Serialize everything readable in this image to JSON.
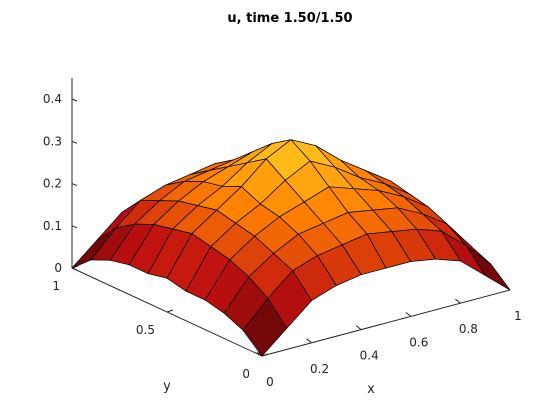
{
  "chart_data": {
    "type": "surface",
    "title": "u, time 1.50/1.50",
    "xlabel": "x",
    "ylabel": "y",
    "zlabel": "",
    "xlim": [
      0,
      1
    ],
    "ylim": [
      0,
      1
    ],
    "zlim": [
      0,
      0.45
    ],
    "x_ticks": [
      "0",
      "0.2",
      "0.4",
      "0.6",
      "0.8",
      "1"
    ],
    "y_ticks": [
      "0",
      "0.5",
      "1"
    ],
    "z_ticks": [
      "0",
      "0.1",
      "0.2",
      "0.3",
      "0.4"
    ],
    "colormap": "autumn",
    "colormap_colors": [
      "#3a0000",
      "#c01010",
      "#ff8000",
      "#ffd020"
    ],
    "edge_color": "#000000",
    "grid": false,
    "mesh_size": 10,
    "x": [
      0,
      0.1,
      0.2,
      0.3,
      0.4,
      0.5,
      0.6,
      0.7,
      0.8,
      0.9,
      1.0
    ],
    "y": [
      0,
      0.1,
      0.2,
      0.3,
      0.4,
      0.5,
      0.6,
      0.7,
      0.8,
      0.9,
      1.0
    ],
    "z": [
      [
        0.0,
        0.05,
        0.1,
        0.12,
        0.13,
        0.13,
        0.13,
        0.12,
        0.1,
        0.05,
        0.0
      ],
      [
        0.04,
        0.1,
        0.15,
        0.17,
        0.18,
        0.19,
        0.18,
        0.17,
        0.15,
        0.1,
        0.04
      ],
      [
        0.06,
        0.13,
        0.17,
        0.2,
        0.21,
        0.22,
        0.21,
        0.2,
        0.17,
        0.13,
        0.06
      ],
      [
        0.07,
        0.15,
        0.19,
        0.22,
        0.24,
        0.26,
        0.24,
        0.22,
        0.19,
        0.15,
        0.07
      ],
      [
        0.07,
        0.16,
        0.2,
        0.23,
        0.27,
        0.3,
        0.27,
        0.23,
        0.2,
        0.16,
        0.07
      ],
      [
        0.08,
        0.17,
        0.21,
        0.25,
        0.3,
        0.33,
        0.3,
        0.25,
        0.21,
        0.17,
        0.08
      ],
      [
        0.07,
        0.16,
        0.2,
        0.23,
        0.27,
        0.3,
        0.27,
        0.23,
        0.2,
        0.16,
        0.07
      ],
      [
        0.07,
        0.15,
        0.19,
        0.22,
        0.24,
        0.26,
        0.24,
        0.22,
        0.19,
        0.15,
        0.07
      ],
      [
        0.06,
        0.13,
        0.17,
        0.2,
        0.21,
        0.22,
        0.21,
        0.2,
        0.17,
        0.13,
        0.06
      ],
      [
        0.04,
        0.1,
        0.15,
        0.17,
        0.18,
        0.19,
        0.18,
        0.17,
        0.15,
        0.1,
        0.04
      ],
      [
        0.0,
        0.05,
        0.1,
        0.12,
        0.13,
        0.13,
        0.13,
        0.12,
        0.1,
        0.05,
        0.0
      ]
    ]
  }
}
